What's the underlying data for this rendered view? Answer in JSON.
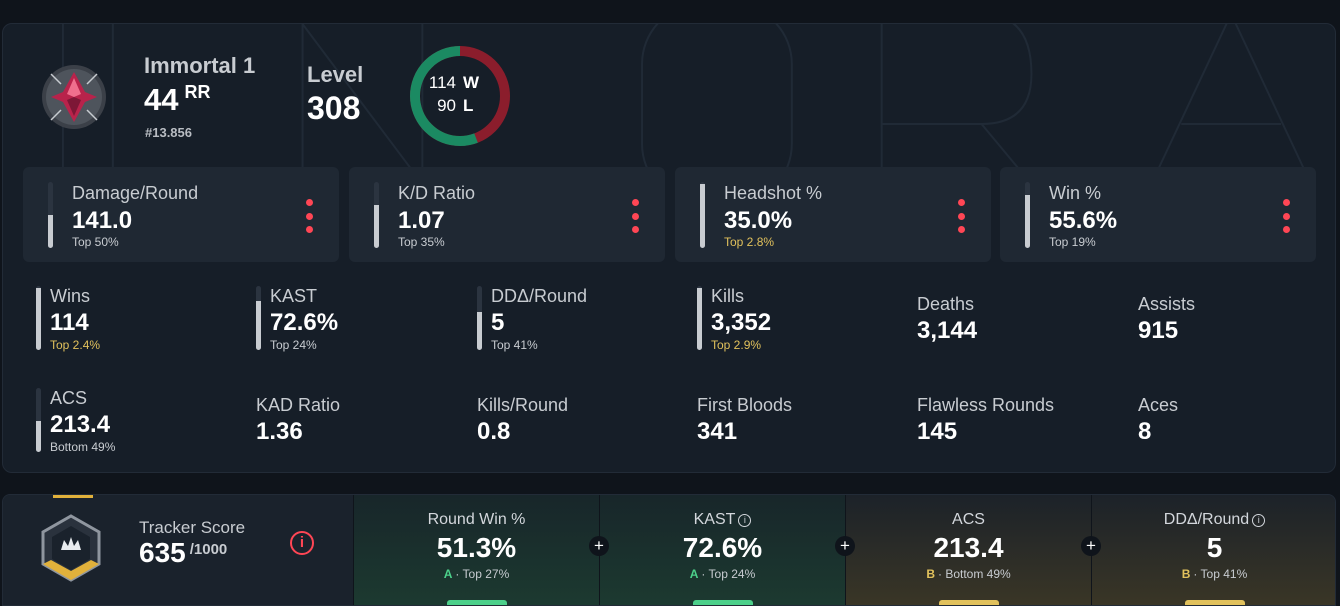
{
  "profile": {
    "rank_name": "Immortal 1",
    "rr_value": "44",
    "rr_unit": "RR",
    "leaderboard": "#13.856",
    "level_label": "Level",
    "level_value": "308",
    "wins": "114",
    "wins_letter": "W",
    "losses": "90",
    "losses_letter": "L",
    "colors": {
      "win": "#1b8a62",
      "loss": "#8b1d2c"
    }
  },
  "cards": [
    {
      "label": "Damage/Round",
      "value": "141.0",
      "sub": "Top 50%",
      "fill": 0.5
    },
    {
      "label": "K/D Ratio",
      "value": "1.07",
      "sub": "Top 35%",
      "fill": 0.65
    },
    {
      "label": "Headshot %",
      "value": "35.0%",
      "sub": "Top 2.8%",
      "fill": 0.97
    },
    {
      "label": "Win %",
      "value": "55.6%",
      "sub": "Top 19%",
      "fill": 0.81
    }
  ],
  "stats": [
    {
      "label": "Wins",
      "value": "114",
      "sub": "Top 2.4%",
      "fill": 0.97
    },
    {
      "label": "KAST",
      "value": "72.6%",
      "sub": "Top 24%",
      "fill": 0.76
    },
    {
      "label": "DDΔ/Round",
      "value": "5",
      "sub": "Top 41%",
      "fill": 0.59
    },
    {
      "label": "Kills",
      "value": "3,352",
      "sub": "Top 2.9%",
      "fill": 0.97
    },
    {
      "label": "Deaths",
      "value": "3,144"
    },
    {
      "label": "Assists",
      "value": "915"
    },
    {
      "label": "ACS",
      "value": "213.4",
      "sub": "Bottom 49%",
      "fill": 0.49
    },
    {
      "label": "KAD Ratio",
      "value": "1.36"
    },
    {
      "label": "Kills/Round",
      "value": "0.8"
    },
    {
      "label": "First Bloods",
      "value": "341"
    },
    {
      "label": "Flawless Rounds",
      "value": "145"
    },
    {
      "label": "Aces",
      "value": "8"
    }
  ],
  "tracker": {
    "label": "Tracker Score",
    "value": "635",
    "max": "/1000",
    "info_icon": "i",
    "segments": [
      {
        "label": "Round Win %",
        "value": "51.3%",
        "grade": "A",
        "sub": "· Top 27%"
      },
      {
        "label": "KAST",
        "value": "72.6%",
        "grade": "A",
        "sub": "· Top 24%"
      },
      {
        "label": "ACS",
        "value": "213.4",
        "grade": "B",
        "sub": "· Bottom 49%"
      },
      {
        "label": "DDΔ/Round",
        "value": "5",
        "grade": "B",
        "sub": "· Top 41%"
      }
    ],
    "plus_icon": "+"
  }
}
